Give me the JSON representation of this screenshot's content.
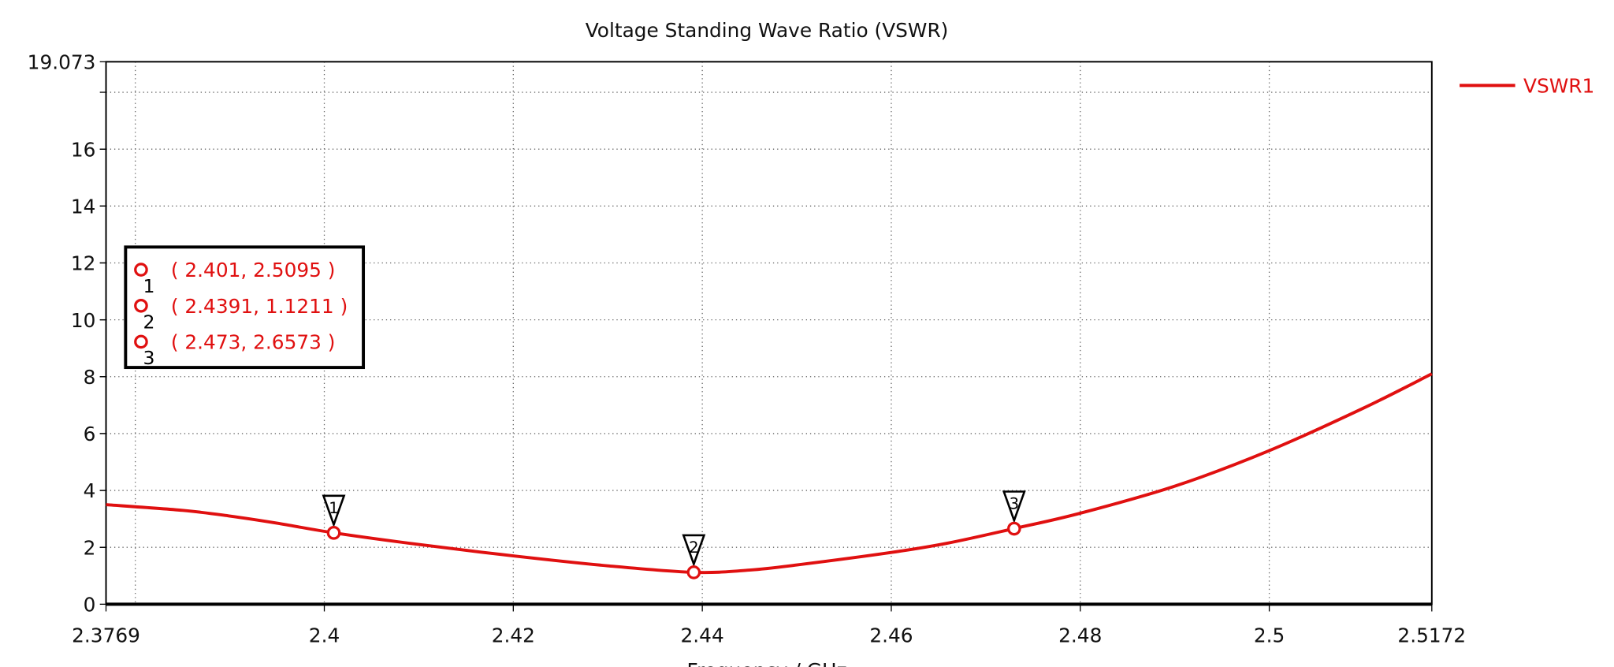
{
  "chart_data": {
    "type": "line",
    "title": "Voltage Standing Wave Ratio (VSWR)",
    "xlabel": "Frequency / GHz",
    "ylabel": "",
    "xlim": [
      2.3769,
      2.5172
    ],
    "ylim": [
      0,
      19.073
    ],
    "x_tick_labels": [
      "2.3769",
      "2.4",
      "2.42",
      "2.44",
      "2.46",
      "2.48",
      "2.5",
      "2.5172"
    ],
    "x_ticks": [
      2.3769,
      2.4,
      2.42,
      2.44,
      2.46,
      2.48,
      2.5,
      2.5172
    ],
    "x_grid": [
      2.38,
      2.4,
      2.42,
      2.44,
      2.46,
      2.48,
      2.5
    ],
    "y_tick_labels": [
      "0",
      "2",
      "4",
      "6",
      "8",
      "10",
      "12",
      "14",
      "16",
      "19.073"
    ],
    "y_ticks": [
      0,
      2,
      4,
      6,
      8,
      10,
      12,
      14,
      16,
      19.073
    ],
    "y_grid": [
      2,
      4,
      6,
      8,
      10,
      12,
      14,
      16,
      18
    ],
    "grid": true,
    "legend_position": "right-top",
    "series": [
      {
        "name": "VSWR1",
        "color": "#e01010",
        "x": [
          2.3769,
          2.385,
          2.39,
          2.395,
          2.401,
          2.41,
          2.42,
          2.43,
          2.4391,
          2.445,
          2.45,
          2.46,
          2.466,
          2.473,
          2.48,
          2.49,
          2.5,
          2.51,
          2.5172
        ],
        "y": [
          3.5,
          3.3,
          3.1,
          2.85,
          2.51,
          2.1,
          1.7,
          1.35,
          1.12,
          1.2,
          1.38,
          1.82,
          2.15,
          2.66,
          3.2,
          4.15,
          5.4,
          6.9,
          8.1
        ]
      }
    ],
    "markers": [
      {
        "id": "1",
        "x": 2.401,
        "y": 2.5095,
        "label": "( 2.401, 2.5095 )"
      },
      {
        "id": "2",
        "x": 2.4391,
        "y": 1.1211,
        "label": "( 2.4391, 1.1211 )"
      },
      {
        "id": "3",
        "x": 2.473,
        "y": 2.6573,
        "label": "( 2.473, 2.6573 )"
      }
    ]
  }
}
